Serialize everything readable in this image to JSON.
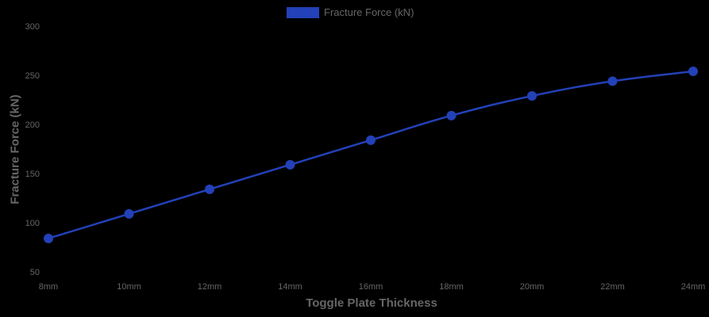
{
  "chart_data": {
    "type": "line",
    "title": "",
    "xlabel": "Toggle Plate Thickness",
    "ylabel": "Fracture Force (kN)",
    "categories": [
      "8mm",
      "10mm",
      "12mm",
      "14mm",
      "16mm",
      "18mm",
      "20mm",
      "22mm",
      "24mm"
    ],
    "series": [
      {
        "name": "Fracture Force (kN)",
        "color": "#2341b8",
        "values": [
          84,
          109,
          134,
          159,
          184,
          209,
          229,
          244,
          254
        ]
      }
    ],
    "ylim": [
      50,
      300
    ],
    "yticks": [
      50,
      100,
      150,
      200,
      250,
      300
    ],
    "grid": false,
    "legend_position": "top"
  },
  "legend": {
    "label": "Fracture Force (kN)",
    "color": "#2341b8"
  },
  "axes": {
    "xlabel": "Toggle Plate Thickness",
    "ylabel": "Fracture Force (kN)"
  }
}
